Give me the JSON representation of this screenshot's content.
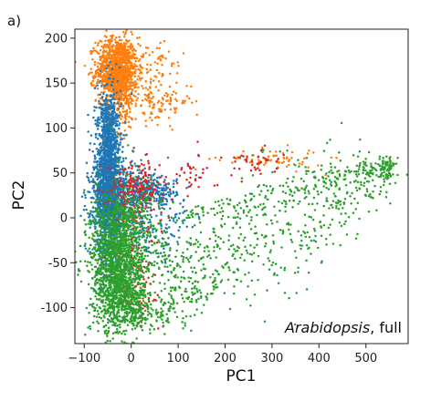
{
  "chart_data": {
    "type": "scatter",
    "panel_label": "a)",
    "xlabel": "PC1",
    "ylabel": "PC2",
    "xlim": [
      -120,
      590
    ],
    "ylim": [
      -140,
      210
    ],
    "xticks": [
      -100,
      0,
      100,
      200,
      300,
      400,
      500
    ],
    "xtick_labels": [
      "−100",
      "0",
      "100",
      "200",
      "300",
      "400",
      "500"
    ],
    "yticks": [
      -100,
      -50,
      0,
      50,
      100,
      150,
      200
    ],
    "ytick_labels": [
      "-100",
      "-50",
      "0",
      "50",
      "100",
      "150",
      "200"
    ],
    "annotation": {
      "italic": "Arabidopsis",
      "rest": ", full",
      "position": "bottom-right"
    },
    "grid": false,
    "series": [
      {
        "color": "#ff7f0e",
        "clusters": [
          {
            "cx": -30,
            "cy": 165,
            "sx": 22,
            "sy": 18,
            "n": 1100
          },
          {
            "cx": -20,
            "cy": 130,
            "sx": 18,
            "sy": 18,
            "n": 160
          },
          {
            "cx": 60,
            "cy": 130,
            "sx": 35,
            "sy": 12,
            "n": 120
          },
          {
            "cx": 40,
            "cy": 175,
            "sx": 40,
            "sy": 12,
            "n": 60
          },
          {
            "cx": 300,
            "cy": 65,
            "sx": 55,
            "sy": 6,
            "n": 70
          }
        ]
      },
      {
        "color": "#1f77b4",
        "clusters": [
          {
            "cx": -50,
            "cy": 40,
            "sx": 14,
            "sy": 45,
            "n": 1700
          },
          {
            "cx": -30,
            "cy": 20,
            "sx": 28,
            "sy": 22,
            "n": 500
          },
          {
            "cx": 40,
            "cy": 30,
            "sx": 28,
            "sy": 8,
            "n": 220
          },
          {
            "cx": -45,
            "cy": 100,
            "sx": 10,
            "sy": 18,
            "n": 150
          },
          {
            "cx": 60,
            "cy": -10,
            "sx": 35,
            "sy": 22,
            "n": 120
          }
        ]
      },
      {
        "color": "#d62728",
        "clusters": [
          {
            "cx": 10,
            "cy": 35,
            "sx": 30,
            "sy": 14,
            "n": 200
          },
          {
            "cx": 10,
            "cy": -55,
            "sx": 25,
            "sy": 35,
            "n": 130
          },
          {
            "cx": 250,
            "cy": 62,
            "sx": 35,
            "sy": 8,
            "n": 40
          },
          {
            "cx": 120,
            "cy": 45,
            "sx": 30,
            "sy": 12,
            "n": 40
          }
        ]
      },
      {
        "color": "#2ca02c",
        "clusters": [
          {
            "cx": -30,
            "cy": -50,
            "sx": 28,
            "sy": 40,
            "n": 1600
          },
          {
            "cx": -10,
            "cy": -95,
            "sx": 30,
            "sy": 12,
            "n": 300
          },
          {
            "cx": 30,
            "cy": -30,
            "sx": 30,
            "sy": 35,
            "n": 200
          },
          {
            "cx": 545,
            "cy": 55,
            "sx": 8,
            "sy": 6,
            "n": 60
          }
        ],
        "arms": [
          {
            "from": [
              100,
              0
            ],
            "to": [
              555,
              60
            ],
            "spread": 10,
            "n": 180
          },
          {
            "from": [
              80,
              -60
            ],
            "to": [
              540,
              45
            ],
            "spread": 45,
            "n": 520
          },
          {
            "from": [
              20,
              -110
            ],
            "to": [
              180,
              -80
            ],
            "spread": 18,
            "n": 120
          }
        ]
      }
    ]
  }
}
